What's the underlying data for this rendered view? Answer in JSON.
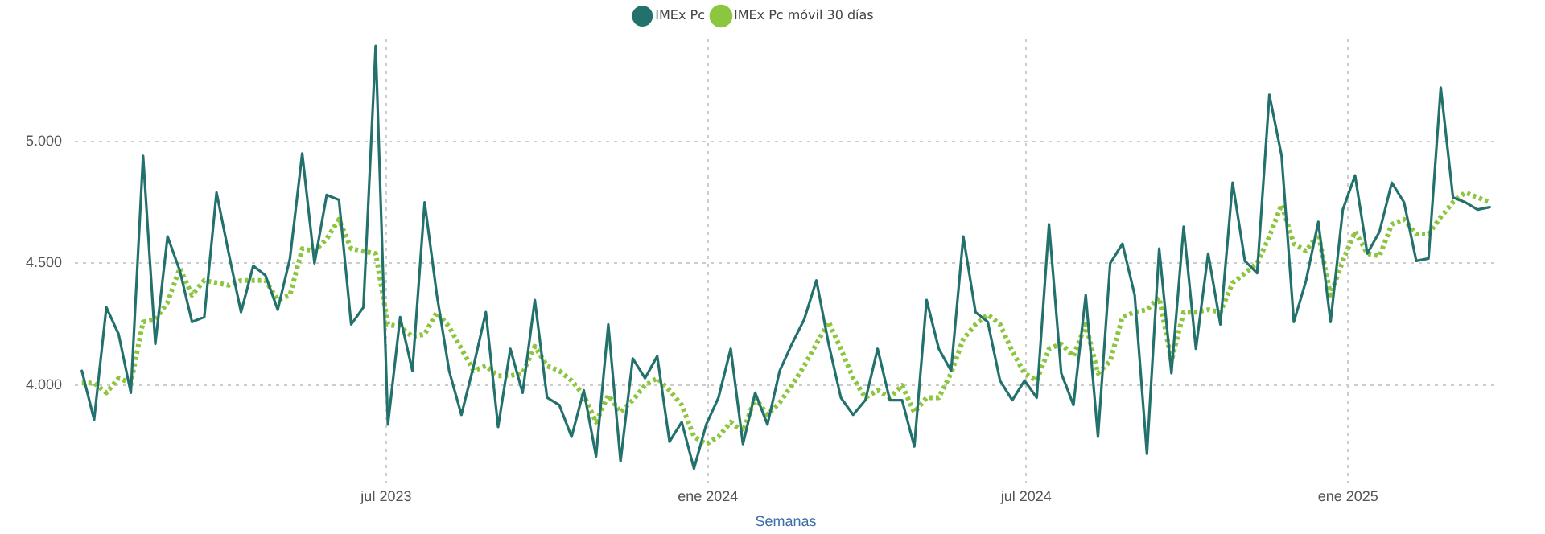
{
  "chart_data": {
    "type": "line",
    "xlabel": "Semanas",
    "legend": "top",
    "grid": true,
    "marker": "none",
    "xlim": [
      "2023-01-04",
      "2025-03-27"
    ],
    "ylim": [
      3600,
      5420
    ],
    "xticks": [
      {
        "value": "2023-07-01",
        "label": "jul 2023"
      },
      {
        "value": "2024-01-01",
        "label": "ene 2024"
      },
      {
        "value": "2024-07-01",
        "label": "jul 2024"
      },
      {
        "value": "2025-01-01",
        "label": "ene 2025"
      }
    ],
    "yticks": [
      {
        "value": 4000,
        "label": "4.000"
      },
      {
        "value": 4500,
        "label": "4.500"
      },
      {
        "value": 5000,
        "label": "5.000"
      }
    ],
    "x": [
      "2023-01-08",
      "2023-01-15",
      "2023-01-22",
      "2023-01-29",
      "2023-02-05",
      "2023-02-12",
      "2023-02-19",
      "2023-02-26",
      "2023-03-05",
      "2023-03-12",
      "2023-03-19",
      "2023-03-26",
      "2023-04-02",
      "2023-04-09",
      "2023-04-16",
      "2023-04-23",
      "2023-04-30",
      "2023-05-07",
      "2023-05-14",
      "2023-05-21",
      "2023-05-28",
      "2023-06-04",
      "2023-06-11",
      "2023-06-18",
      "2023-06-25",
      "2023-07-02",
      "2023-07-09",
      "2023-07-16",
      "2023-07-23",
      "2023-07-30",
      "2023-08-06",
      "2023-08-13",
      "2023-08-20",
      "2023-08-27",
      "2023-09-03",
      "2023-09-10",
      "2023-09-17",
      "2023-09-24",
      "2023-10-01",
      "2023-10-08",
      "2023-10-15",
      "2023-10-22",
      "2023-10-29",
      "2023-11-05",
      "2023-11-12",
      "2023-11-19",
      "2023-11-26",
      "2023-12-03",
      "2023-12-10",
      "2023-12-17",
      "2023-12-24",
      "2023-12-31",
      "2024-01-07",
      "2024-01-14",
      "2024-01-21",
      "2024-01-28",
      "2024-02-04",
      "2024-02-11",
      "2024-02-18",
      "2024-02-25",
      "2024-03-03",
      "2024-03-10",
      "2024-03-17",
      "2024-03-24",
      "2024-03-31",
      "2024-04-07",
      "2024-04-14",
      "2024-04-21",
      "2024-04-28",
      "2024-05-05",
      "2024-05-12",
      "2024-05-19",
      "2024-05-26",
      "2024-06-02",
      "2024-06-09",
      "2024-06-16",
      "2024-06-23",
      "2024-06-30",
      "2024-07-07",
      "2024-07-14",
      "2024-07-21",
      "2024-07-28",
      "2024-08-04",
      "2024-08-11",
      "2024-08-18",
      "2024-08-25",
      "2024-09-01",
      "2024-09-08",
      "2024-09-15",
      "2024-09-22",
      "2024-09-29",
      "2024-10-06",
      "2024-10-13",
      "2024-10-20",
      "2024-10-27",
      "2024-11-03",
      "2024-11-10",
      "2024-11-17",
      "2024-11-24",
      "2024-12-01",
      "2024-12-08",
      "2024-12-15",
      "2024-12-22",
      "2024-12-29",
      "2025-01-05",
      "2025-01-12",
      "2025-01-19",
      "2025-01-26",
      "2025-02-02",
      "2025-02-09",
      "2025-02-16",
      "2025-02-23",
      "2025-03-02",
      "2025-03-09",
      "2025-03-16",
      "2025-03-23"
    ],
    "series": [
      {
        "name": "IMEx Pc",
        "color": "#23716c",
        "line_style": "solid",
        "values": [
          4060,
          3860,
          4320,
          4210,
          3970,
          4940,
          4170,
          4610,
          4470,
          4260,
          4280,
          4790,
          4540,
          4300,
          4490,
          4450,
          4310,
          4520,
          4950,
          4500,
          4780,
          4760,
          4250,
          4320,
          5390,
          3840,
          4280,
          4060,
          4750,
          4370,
          4060,
          3880,
          4080,
          4300,
          3830,
          4150,
          3970,
          4350,
          3950,
          3920,
          3790,
          3980,
          3710,
          4250,
          3690,
          4110,
          4030,
          4120,
          3770,
          3850,
          3660,
          3840,
          3950,
          4150,
          3760,
          3970,
          3840,
          4060,
          4170,
          4270,
          4430,
          4170,
          3950,
          3880,
          3940,
          4150,
          3940,
          3940,
          3750,
          4350,
          4150,
          4060,
          4610,
          4300,
          4260,
          4020,
          3940,
          4020,
          3950,
          4660,
          4050,
          3920,
          4370,
          3790,
          4500,
          4580,
          4370,
          3720,
          4560,
          4050,
          4650,
          4150,
          4540,
          4250,
          4830,
          4510,
          4460,
          5190,
          4940,
          4260,
          4430,
          4670,
          4260,
          4720,
          4860,
          4540,
          4630,
          4830,
          4750,
          4510,
          4520,
          5220,
          4770,
          4750,
          4720,
          4730
        ]
      },
      {
        "name": "IMEx Pc móvil 30 días",
        "color": "#8cc63f",
        "line_style": "dotted",
        "values": [
          4010,
          4010,
          3970,
          4030,
          4010,
          4260,
          4270,
          4340,
          4480,
          4370,
          4430,
          4420,
          4410,
          4430,
          4430,
          4430,
          4350,
          4370,
          4560,
          4550,
          4600,
          4680,
          4560,
          4550,
          4540,
          4250,
          4240,
          4200,
          4210,
          4300,
          4240,
          4150,
          4060,
          4080,
          4040,
          4040,
          4050,
          4160,
          4080,
          4060,
          4020,
          3960,
          3850,
          3960,
          3890,
          3940,
          4000,
          4030,
          3980,
          3920,
          3790,
          3760,
          3790,
          3850,
          3810,
          3950,
          3880,
          3930,
          4000,
          4080,
          4170,
          4260,
          4150,
          4030,
          3950,
          3980,
          3950,
          4000,
          3890,
          3950,
          3950,
          4050,
          4190,
          4250,
          4290,
          4250,
          4140,
          4050,
          4020,
          4150,
          4170,
          4120,
          4250,
          4050,
          4100,
          4280,
          4300,
          4310,
          4360,
          4100,
          4300,
          4300,
          4310,
          4300,
          4420,
          4460,
          4500,
          4610,
          4740,
          4580,
          4550,
          4620,
          4370,
          4510,
          4630,
          4540,
          4530,
          4660,
          4680,
          4620,
          4620,
          4690,
          4750,
          4790,
          4770,
          4750
        ]
      }
    ]
  }
}
